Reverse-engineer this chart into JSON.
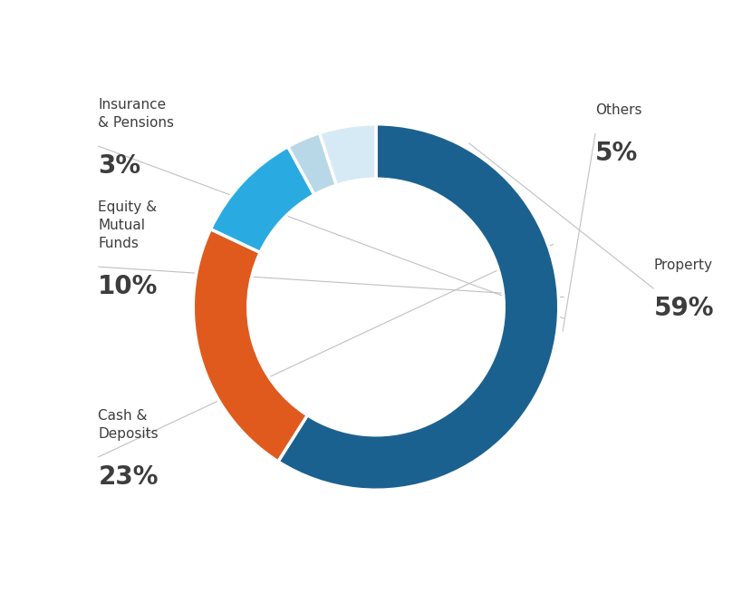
{
  "background_color": "#ffffff",
  "donut_width": 0.3,
  "startangle": 90,
  "plot_values": [
    59,
    23,
    10,
    3,
    5
  ],
  "plot_colors": [
    "#1b6190",
    "#e05a1e",
    "#29abe2",
    "#b8d8e8",
    "#d6eaf5"
  ],
  "plot_names": [
    "Property",
    "Cash &\nDeposits",
    "Equity &\nMutual\nFunds",
    "Insurance\n& Pensions",
    "Others"
  ],
  "plot_pcts": [
    "59%",
    "23%",
    "10%",
    "3%",
    "5%"
  ],
  "text_color": "#3d3d3d",
  "line_color": "#c0c0c0",
  "label_fontsize": 11,
  "pct_fontsize": 20
}
